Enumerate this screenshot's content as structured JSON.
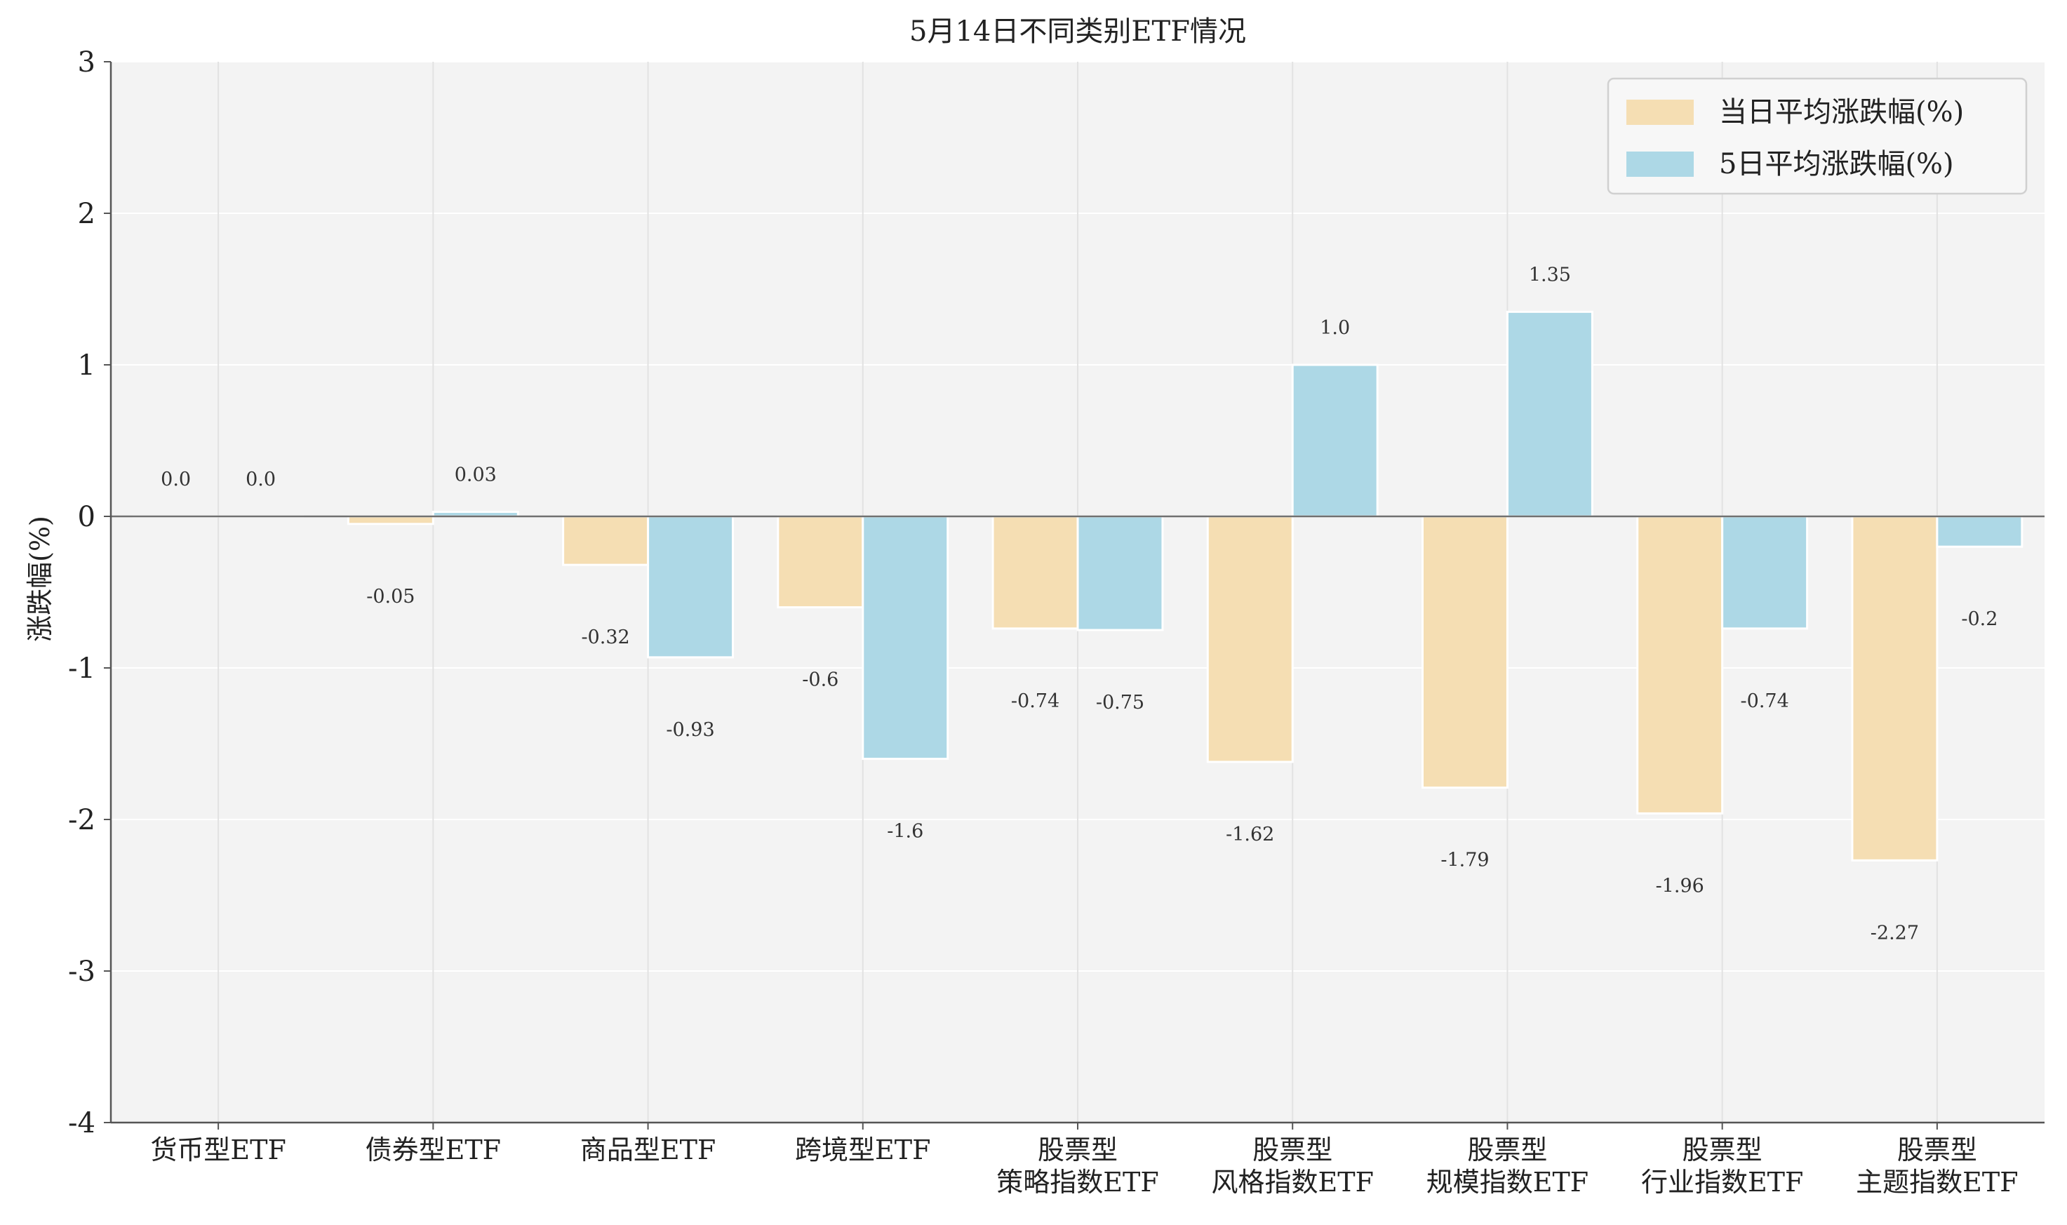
{
  "chart_data": {
    "type": "bar",
    "title": "5月14日不同类别ETF情况",
    "xlabel": "",
    "ylabel": "涨跌幅(%)",
    "ylim": [
      -4,
      3
    ],
    "yticks": [
      3,
      2,
      1,
      0,
      -1,
      -2,
      -3,
      -4
    ],
    "grid": true,
    "legend_position": "top-right",
    "categories": [
      [
        "货币型ETF"
      ],
      [
        "债券型ETF"
      ],
      [
        "商品型ETF"
      ],
      [
        "跨境型ETF"
      ],
      [
        "股票型",
        "策略指数ETF"
      ],
      [
        "股票型",
        "风格指数ETF"
      ],
      [
        "股票型",
        "规模指数ETF"
      ],
      [
        "股票型",
        "行业指数ETF"
      ],
      [
        "股票型",
        "主题指数ETF"
      ]
    ],
    "series": [
      {
        "name": "当日平均涨跌幅(%)",
        "color": "#f5deb3",
        "values": [
          0.0,
          -0.05,
          -0.32,
          -0.6,
          -0.74,
          -1.62,
          -1.79,
          -1.96,
          -2.27
        ],
        "labels": [
          "0.0",
          "-0.05",
          "-0.32",
          "-0.6",
          "-0.74",
          "-1.62",
          "-1.79",
          "-1.96",
          "-2.27"
        ]
      },
      {
        "name": "5日平均涨跌幅(%)",
        "color": "#add8e6",
        "values": [
          0.0,
          0.03,
          -0.93,
          -1.6,
          -0.75,
          1.0,
          1.35,
          -0.74,
          -0.2
        ],
        "labels": [
          "0.0",
          "0.03",
          "-0.93",
          "-1.6",
          "-0.75",
          "1.0",
          "1.35",
          "-0.74",
          "-0.2"
        ]
      }
    ]
  }
}
